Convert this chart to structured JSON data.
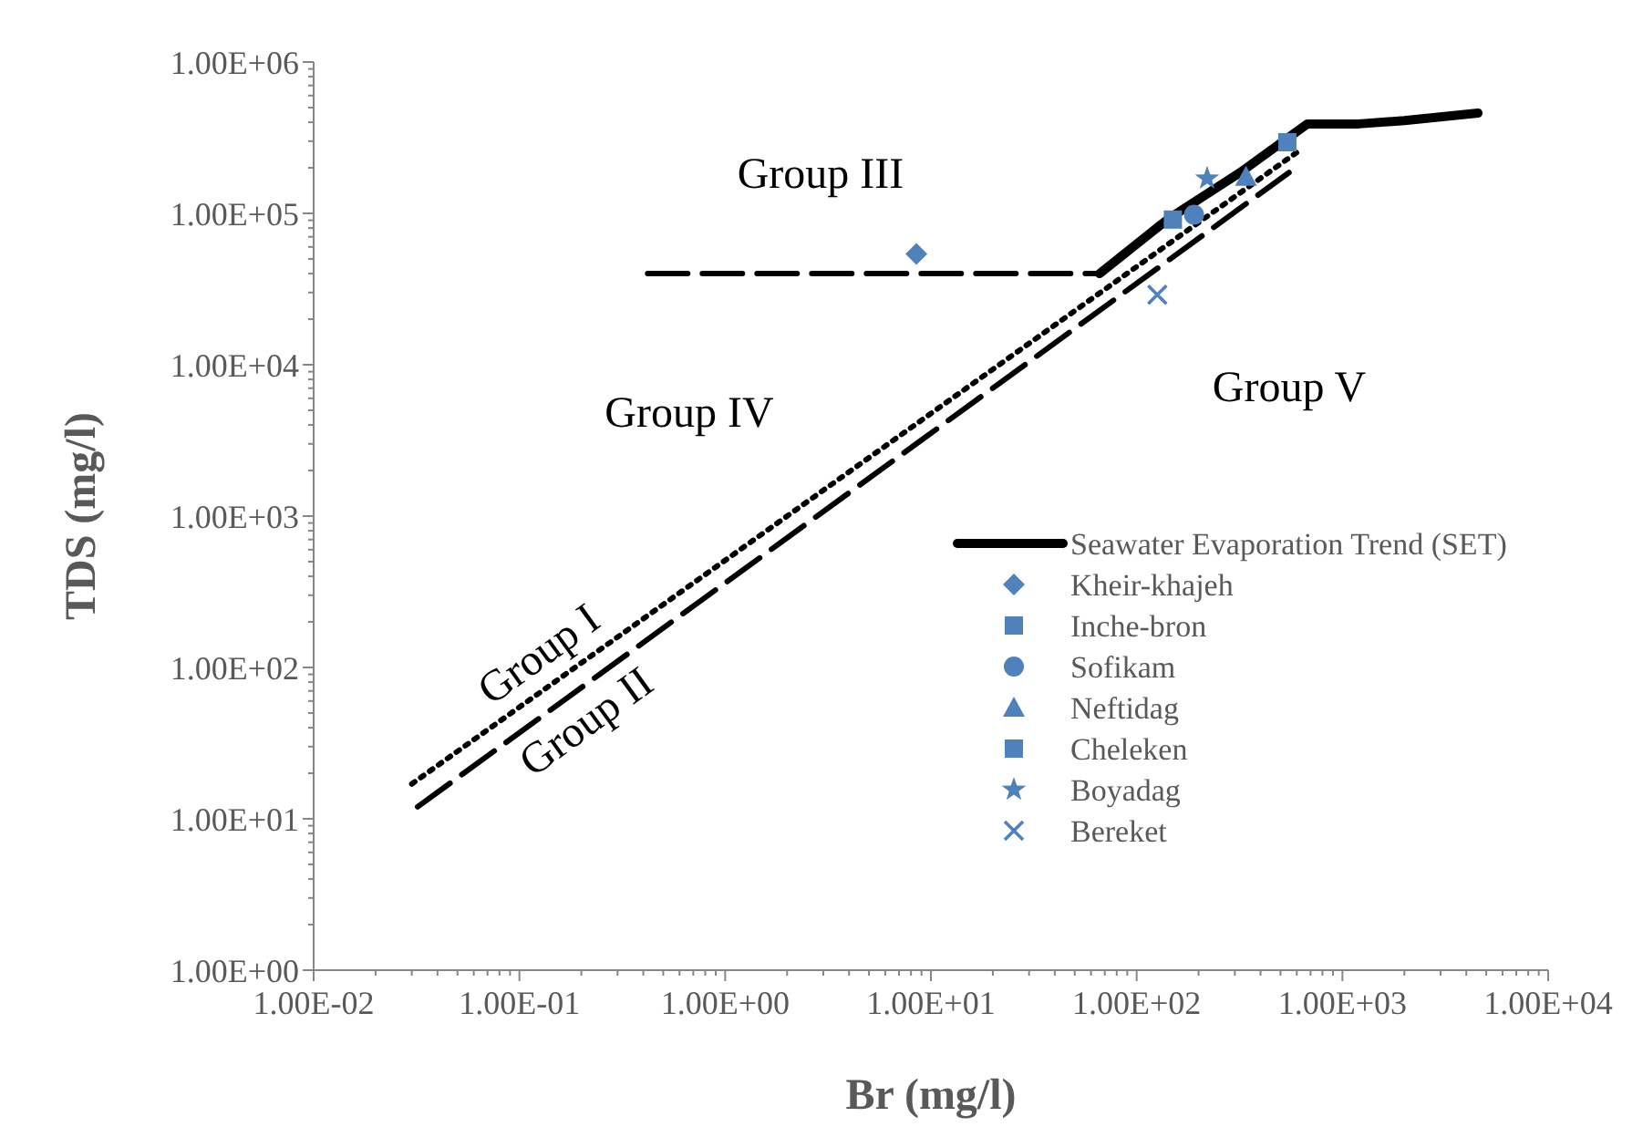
{
  "chart_data": {
    "type": "scatter",
    "xlabel": "Br (mg/l)",
    "ylabel": "TDS (mg/l)",
    "log": "xy",
    "grid": false,
    "legend": "right",
    "xlim": [
      0.01,
      10000
    ],
    "ylim": [
      1,
      1000000
    ],
    "xticks": [
      {
        "value": 0.01,
        "label": "1.00E-02"
      },
      {
        "value": 0.1,
        "label": "1.00E-01"
      },
      {
        "value": 1,
        "label": "1.00E+00"
      },
      {
        "value": 10,
        "label": "1.00E+01"
      },
      {
        "value": 100,
        "label": "1.00E+02"
      },
      {
        "value": 1000,
        "label": "1.00E+03"
      },
      {
        "value": 10000,
        "label": "1.00E+04"
      }
    ],
    "yticks": [
      {
        "value": 1,
        "label": "1.00E+00"
      },
      {
        "value": 10,
        "label": "1.00E+01"
      },
      {
        "value": 100,
        "label": "1.00E+02"
      },
      {
        "value": 1000,
        "label": "1.00E+03"
      },
      {
        "value": 10000,
        "label": "1.00E+04"
      },
      {
        "value": 100000,
        "label": "1.00E+05"
      },
      {
        "value": 1000000,
        "label": "1.00E+06"
      }
    ],
    "annotations": [
      "Group I",
      "Group II",
      "Group III",
      "Group IV",
      "Group V"
    ],
    "series": [
      {
        "type": "line",
        "name": "Seawater Evaporation Trend (SET)",
        "color": "#000000",
        "line_style": "solid",
        "x": [
          66,
          141,
          318,
          676,
          1200,
          2000,
          4560
        ],
        "values": [
          40000,
          91000,
          186000,
          390000,
          390000,
          410000,
          460000
        ]
      },
      {
        "type": "line",
        "color": "#000000",
        "line_style": "dotted",
        "x": [
          0.03,
          630
        ],
        "values": [
          17,
          265000
        ]
      },
      {
        "type": "line",
        "color": "#000000",
        "line_style": "dashed",
        "x": [
          0.032,
          550
        ],
        "values": [
          12,
          186000
        ]
      },
      {
        "type": "line",
        "color": "#000000",
        "line_style": "dashed",
        "x": [
          0.42,
          66
        ],
        "values": [
          40000,
          40000
        ]
      },
      {
        "name": "Kheir-khajeh",
        "color": "#4f81bd",
        "marker": "diamond",
        "x": [
          8.5
        ],
        "values": [
          54000
        ]
      },
      {
        "name": "Inche-bron",
        "color": "#4f81bd",
        "marker": "square",
        "x": [
          150
        ],
        "values": [
          91000
        ]
      },
      {
        "name": "Sofikam",
        "color": "#4f81bd",
        "marker": "circle",
        "x": [
          190
        ],
        "values": [
          98000
        ]
      },
      {
        "name": "Neftidag",
        "color": "#4f81bd",
        "marker": "triangle",
        "x": [
          340
        ],
        "values": [
          175000
        ]
      },
      {
        "name": "Cheleken",
        "color": "#4f81bd",
        "marker": "square",
        "x": [
          540
        ],
        "values": [
          295000
        ]
      },
      {
        "name": "Boyadag",
        "color": "#4f81bd",
        "marker": "star",
        "x": [
          220
        ],
        "values": [
          170000
        ]
      },
      {
        "name": "Bereket",
        "color": "#4f81bd",
        "marker": "cross",
        "x": [
          126
        ],
        "values": [
          29000
        ]
      }
    ]
  }
}
